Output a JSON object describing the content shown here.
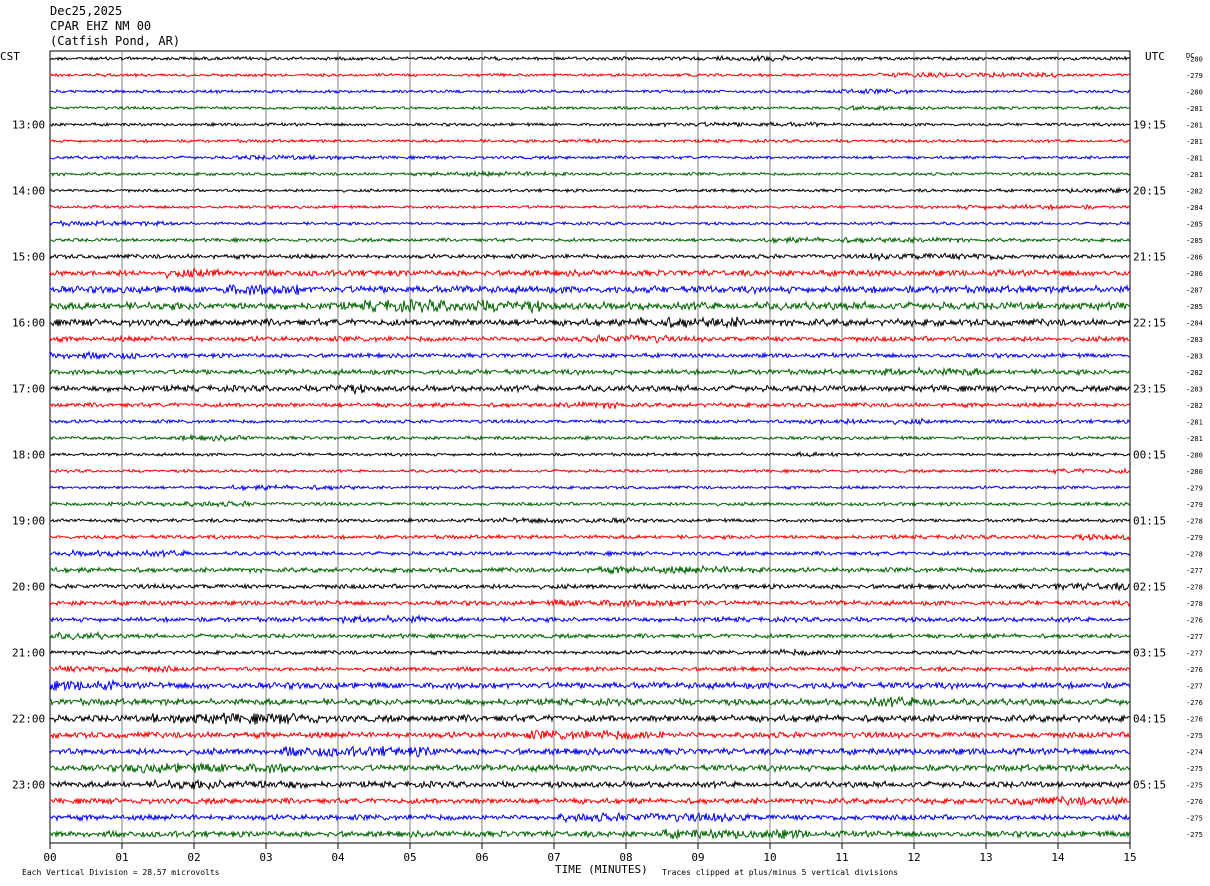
{
  "header": {
    "date": "Dec25,2025",
    "station": "CPAR EHZ NM 00",
    "location": "(Catfish Pond, AR)"
  },
  "labels": {
    "left_zone": "CST",
    "right_zone": "UTC",
    "dc_label": "DC",
    "footer_left": "Each Vertical Division =   28.57 microvolts",
    "footer_center": "TIME (MINUTES)",
    "footer_right": "Traces clipped at plus/minus 5 vertical divisions"
  },
  "chart_data": {
    "type": "line",
    "title": "",
    "xlabel": "TIME (MINUTES)",
    "x_ticks": [
      "00",
      "01",
      "02",
      "03",
      "04",
      "05",
      "06",
      "07",
      "08",
      "09",
      "10",
      "11",
      "12",
      "13",
      "14",
      "15"
    ],
    "xlim": [
      0,
      15
    ],
    "trace_count": 48,
    "trace_minutes": 15,
    "trace_colors": [
      "#000000",
      "#ff0000",
      "#0000ff",
      "#006400"
    ],
    "left_time_labels": [
      "13:00",
      "14:00",
      "15:00",
      "16:00",
      "17:00",
      "18:00",
      "19:00",
      "20:00",
      "21:00",
      "22:00",
      "23:00"
    ],
    "right_time_labels": [
      "19:15",
      "20:15",
      "21:15",
      "22:15",
      "23:15",
      "00:15",
      "01:15",
      "02:15",
      "03:15",
      "04:15",
      "05:15"
    ],
    "label_start_trace": 4,
    "dc_values": [
      "-280",
      "-279",
      "-280",
      "-281",
      "-281",
      "-281",
      "-281",
      "-281",
      "-282",
      "-284",
      "-285",
      "-285",
      "-286",
      "-286",
      "-287",
      "-285",
      "-284",
      "-283",
      "-283",
      "-282",
      "-283",
      "-282",
      "-281",
      "-281",
      "-280",
      "-280",
      "-279",
      "-279",
      "-278",
      "-279",
      "-278",
      "-277",
      "-278",
      "-278",
      "-276",
      "-277",
      "-277",
      "-276",
      "-277",
      "-276",
      "-276",
      "-275",
      "-274",
      "-275",
      "-275",
      "-276",
      "-275",
      "-275"
    ],
    "noise_levels": [
      0.8,
      0.7,
      0.7,
      0.7,
      0.7,
      0.7,
      0.7,
      0.7,
      0.7,
      0.7,
      0.7,
      0.8,
      1.0,
      1.4,
      1.7,
      1.8,
      1.6,
      1.2,
      1.0,
      1.2,
      1.4,
      1.0,
      0.8,
      0.8,
      0.7,
      0.7,
      0.7,
      0.8,
      0.8,
      0.9,
      0.9,
      1.1,
      1.1,
      1.1,
      1.1,
      1.0,
      0.9,
      1.0,
      1.5,
      1.5,
      1.6,
      1.4,
      1.5,
      1.5,
      1.4,
      1.3,
      1.3,
      1.4
    ]
  }
}
